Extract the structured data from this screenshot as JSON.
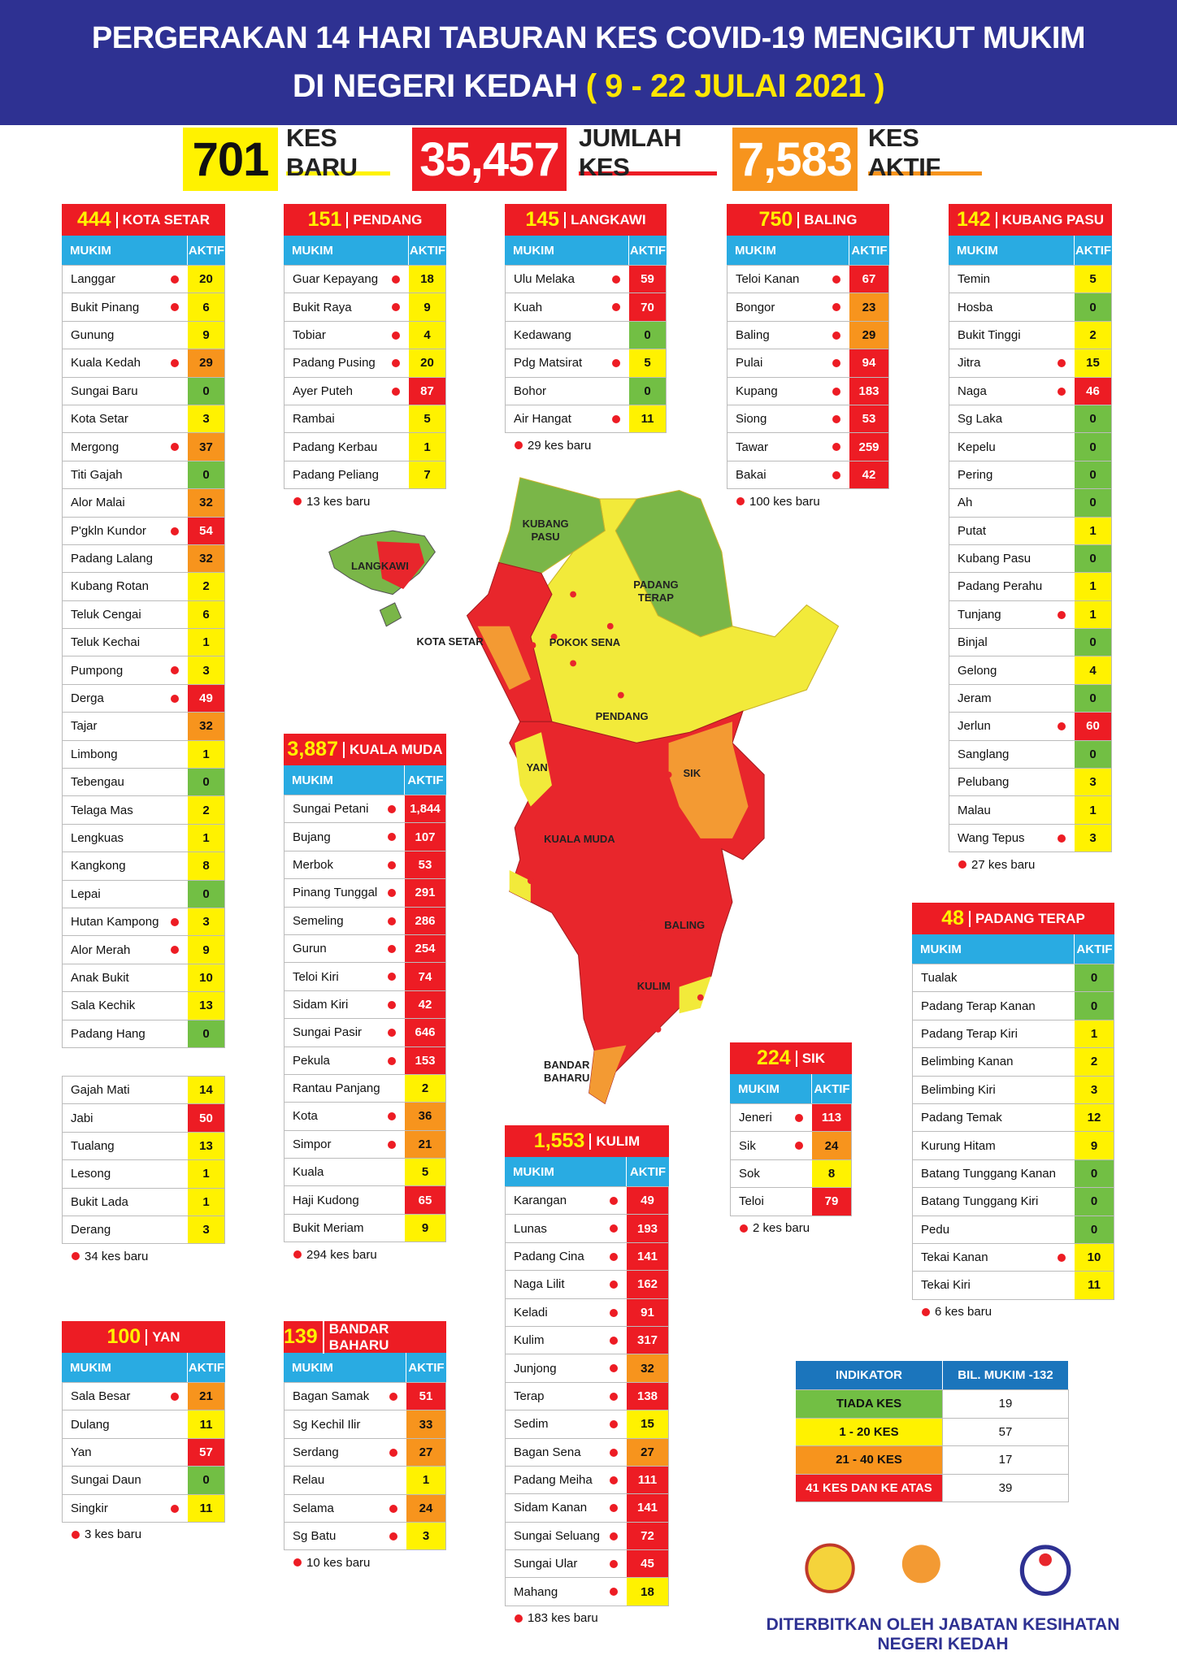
{
  "header": {
    "title_line1": "PERGERAKAN 14 HARI TABURAN KES COVID-19 MENGIKUT MUKIM",
    "title_line2": "DI NEGERI KEDAH",
    "date": "( 9 - 22 JULAI 2021 )"
  },
  "stats": [
    {
      "value": "701",
      "label": "KES BARU",
      "color": "#fff200",
      "text_color": "#111"
    },
    {
      "value": "35,457",
      "label": "JUMLAH KES",
      "color": "#ed1c24",
      "text_color": "#fff"
    },
    {
      "value": "7,583",
      "label": "KES AKTIF",
      "color": "#f7941d",
      "text_color": "#fff"
    }
  ],
  "columns": [
    "MUKIM",
    "AKTIF"
  ],
  "districts": [
    {
      "total": "444",
      "name": "KOTA SETAR",
      "rows": [
        [
          "Langgar",
          true,
          20
        ],
        [
          "Bukit Pinang",
          true,
          6
        ],
        [
          "Gunung",
          false,
          9
        ],
        [
          "Kuala Kedah",
          true,
          29
        ],
        [
          "Sungai Baru",
          false,
          0
        ],
        [
          "Kota Setar",
          false,
          3
        ],
        [
          "Mergong",
          true,
          37
        ],
        [
          "Titi Gajah",
          false,
          0
        ],
        [
          "Alor Malai",
          false,
          32
        ],
        [
          "P'gkln Kundor",
          true,
          54
        ],
        [
          "Padang Lalang",
          false,
          32
        ],
        [
          "Kubang Rotan",
          false,
          2
        ],
        [
          "Teluk Cengai",
          false,
          6
        ],
        [
          "Teluk Kechai",
          false,
          1
        ],
        [
          "Pumpong",
          true,
          3
        ],
        [
          "Derga",
          true,
          49
        ],
        [
          "Tajar",
          false,
          32
        ],
        [
          "Limbong",
          false,
          1
        ],
        [
          "Tebengau",
          false,
          0
        ],
        [
          "Telaga Mas",
          false,
          2
        ],
        [
          "Lengkuas",
          false,
          1
        ],
        [
          "Kangkong",
          false,
          8
        ],
        [
          "Lepai",
          false,
          0
        ],
        [
          "Hutan Kampong",
          true,
          3
        ],
        [
          "Alor Merah",
          true,
          9
        ],
        [
          "Anak Bukit",
          false,
          10
        ],
        [
          "Sala Kechik",
          false,
          13
        ],
        [
          "Padang Hang",
          false,
          0
        ]
      ],
      "extra_rows": [
        [
          "Gajah Mati",
          false,
          14
        ],
        [
          "Jabi",
          false,
          50
        ],
        [
          "Tualang",
          false,
          13
        ],
        [
          "Lesong",
          false,
          1
        ],
        [
          "Bukit Lada",
          false,
          1
        ],
        [
          "Derang",
          false,
          3
        ]
      ],
      "new_cases": "34 kes baru"
    },
    {
      "total": "151",
      "name": "PENDANG",
      "rows": [
        [
          "Guar Kepayang",
          true,
          18
        ],
        [
          "Bukit Raya",
          true,
          9
        ],
        [
          "Tobiar",
          true,
          4
        ],
        [
          "Padang Pusing",
          true,
          20
        ],
        [
          "Ayer Puteh",
          true,
          87
        ],
        [
          "Rambai",
          false,
          5
        ],
        [
          "Padang Kerbau",
          false,
          1
        ],
        [
          "Padang Peliang",
          false,
          7
        ]
      ],
      "new_cases": "13 kes baru"
    },
    {
      "total": "145",
      "name": "LANGKAWI",
      "rows": [
        [
          "Ulu Melaka",
          true,
          59
        ],
        [
          "Kuah",
          true,
          70
        ],
        [
          "Kedawang",
          false,
          0
        ],
        [
          "Pdg Matsirat",
          true,
          5
        ],
        [
          "Bohor",
          false,
          0
        ],
        [
          "Air Hangat",
          true,
          11
        ]
      ],
      "new_cases": "29 kes baru"
    },
    {
      "total": "750",
      "name": "BALING",
      "rows": [
        [
          "Teloi Kanan",
          true,
          67
        ],
        [
          "Bongor",
          true,
          23
        ],
        [
          "Baling",
          true,
          29
        ],
        [
          "Pulai",
          true,
          94
        ],
        [
          "Kupang",
          true,
          183
        ],
        [
          "Siong",
          true,
          53
        ],
        [
          "Tawar",
          true,
          259
        ],
        [
          "Bakai",
          true,
          42
        ]
      ],
      "new_cases": "100 kes baru"
    },
    {
      "total": "142",
      "name": "KUBANG PASU",
      "rows": [
        [
          "Temin",
          false,
          5
        ],
        [
          "Hosba",
          false,
          0
        ],
        [
          "Bukit Tinggi",
          false,
          2
        ],
        [
          "Jitra",
          true,
          15
        ],
        [
          "Naga",
          true,
          46
        ],
        [
          "Sg Laka",
          false,
          0
        ],
        [
          "Kepelu",
          false,
          0
        ],
        [
          "Pering",
          false,
          0
        ],
        [
          "Ah",
          false,
          0
        ],
        [
          "Putat",
          false,
          1
        ],
        [
          "Kubang Pasu",
          false,
          0
        ],
        [
          "Padang Perahu",
          false,
          1
        ],
        [
          "Tunjang",
          true,
          1
        ],
        [
          "Binjal",
          false,
          0
        ],
        [
          "Gelong",
          false,
          4
        ],
        [
          "Jeram",
          false,
          0
        ],
        [
          "Jerlun",
          true,
          60
        ],
        [
          "Sanglang",
          false,
          0
        ],
        [
          "Pelubang",
          false,
          3
        ],
        [
          "Malau",
          false,
          1
        ],
        [
          "Wang Tepus",
          true,
          3
        ]
      ],
      "new_cases": "27 kes baru"
    },
    {
      "total": "3,887",
      "name": "KUALA MUDA",
      "rows": [
        [
          "Sungai Petani",
          true,
          "1,844"
        ],
        [
          "Bujang",
          true,
          107
        ],
        [
          "Merbok",
          true,
          53
        ],
        [
          "Pinang Tunggal",
          true,
          291
        ],
        [
          "Semeling",
          true,
          286
        ],
        [
          "Gurun",
          true,
          254
        ],
        [
          "Teloi Kiri",
          true,
          74
        ],
        [
          "Sidam Kiri",
          true,
          42
        ],
        [
          "Sungai Pasir",
          true,
          646
        ],
        [
          "Pekula",
          true,
          153
        ],
        [
          "Rantau Panjang",
          false,
          2
        ],
        [
          "Kota",
          true,
          36
        ],
        [
          "Simpor",
          true,
          21
        ],
        [
          "Kuala",
          false,
          5
        ],
        [
          "Haji Kudong",
          false,
          65
        ],
        [
          "Bukit Meriam",
          false,
          9
        ]
      ],
      "new_cases": "294 kes baru"
    },
    {
      "total": "48",
      "name": "PADANG TERAP",
      "rows": [
        [
          "Tualak",
          false,
          0
        ],
        [
          "Padang Terap Kanan",
          false,
          0
        ],
        [
          "Padang Terap Kiri",
          false,
          1
        ],
        [
          "Belimbing Kanan",
          false,
          2
        ],
        [
          "Belimbing Kiri",
          false,
          3
        ],
        [
          "Padang Temak",
          false,
          12
        ],
        [
          "Kurung Hitam",
          false,
          9
        ],
        [
          "Batang Tunggang Kanan",
          false,
          0
        ],
        [
          "Batang Tunggang Kiri",
          false,
          0
        ],
        [
          "Pedu",
          false,
          0
        ],
        [
          "Tekai Kanan",
          true,
          10
        ],
        [
          "Tekai Kiri",
          false,
          11
        ]
      ],
      "new_cases": "6 kes baru"
    },
    {
      "total": "224",
      "name": "SIK",
      "rows": [
        [
          "Jeneri",
          true,
          113
        ],
        [
          "Sik",
          true,
          24
        ],
        [
          "Sok",
          false,
          8
        ],
        [
          "Teloi",
          false,
          79
        ]
      ],
      "new_cases": "2 kes baru"
    },
    {
      "total": "1,553",
      "name": "KULIM",
      "rows": [
        [
          "Karangan",
          true,
          49
        ],
        [
          "Lunas",
          true,
          193
        ],
        [
          "Padang Cina",
          true,
          141
        ],
        [
          "Naga Lilit",
          true,
          162
        ],
        [
          "Keladi",
          true,
          91
        ],
        [
          "Kulim",
          true,
          317
        ],
        [
          "Junjong",
          true,
          32
        ],
        [
          "Terap",
          true,
          138
        ],
        [
          "Sedim",
          true,
          15
        ],
        [
          "Bagan Sena",
          true,
          27
        ],
        [
          "Padang Meiha",
          true,
          111
        ],
        [
          "Sidam Kanan",
          true,
          141
        ],
        [
          "Sungai Seluang",
          true,
          72
        ],
        [
          "Sungai Ular",
          true,
          45
        ],
        [
          "Mahang",
          true,
          18
        ]
      ],
      "new_cases": "183 kes baru"
    },
    {
      "total": "100",
      "name": "YAN",
      "rows": [
        [
          "Sala Besar",
          true,
          21
        ],
        [
          "Dulang",
          false,
          11
        ],
        [
          "Yan",
          false,
          57
        ],
        [
          "Sungai Daun",
          false,
          0
        ],
        [
          "Singkir",
          true,
          11
        ]
      ],
      "new_cases": "3 kes baru"
    },
    {
      "total": "139",
      "name": "BANDAR BAHARU",
      "rows": [
        [
          "Bagan Samak",
          true,
          51
        ],
        [
          "Sg Kechil Ilir",
          false,
          33
        ],
        [
          "Serdang",
          true,
          27
        ],
        [
          "Relau",
          false,
          1
        ],
        [
          "Selama",
          true,
          24
        ],
        [
          "Sg Batu",
          true,
          3
        ]
      ],
      "new_cases": "10 kes baru"
    }
  ],
  "legend": {
    "columns": [
      "INDIKATOR",
      "BIL. MUKIM -132"
    ],
    "header_color": "#1b75bc",
    "items": [
      {
        "label": "TIADA KES",
        "count": 19,
        "color": "#72bf44",
        "text_color": "#111"
      },
      {
        "label": "1 - 20 KES",
        "count": 57,
        "color": "#fff200",
        "text_color": "#111"
      },
      {
        "label": "21 - 40 KES",
        "count": 17,
        "color": "#f7941d",
        "text_color": "#111"
      },
      {
        "label": "41 KES DAN KE ATAS",
        "count": 39,
        "color": "#ed1c24",
        "text_color": "#fff"
      }
    ]
  },
  "map_labels": [
    "KUBANG PASU",
    "LANGKAWI",
    "PADANG TERAP",
    "KOTA SETAR",
    "POKOK SENA",
    "PENDANG",
    "YAN",
    "SIK",
    "KUALA MUDA",
    "BALING",
    "KULIM",
    "BANDAR BAHARU"
  ],
  "footer": "DITERBITKAN OLEH JABATAN KESIHATAN NEGERI KEDAH"
}
